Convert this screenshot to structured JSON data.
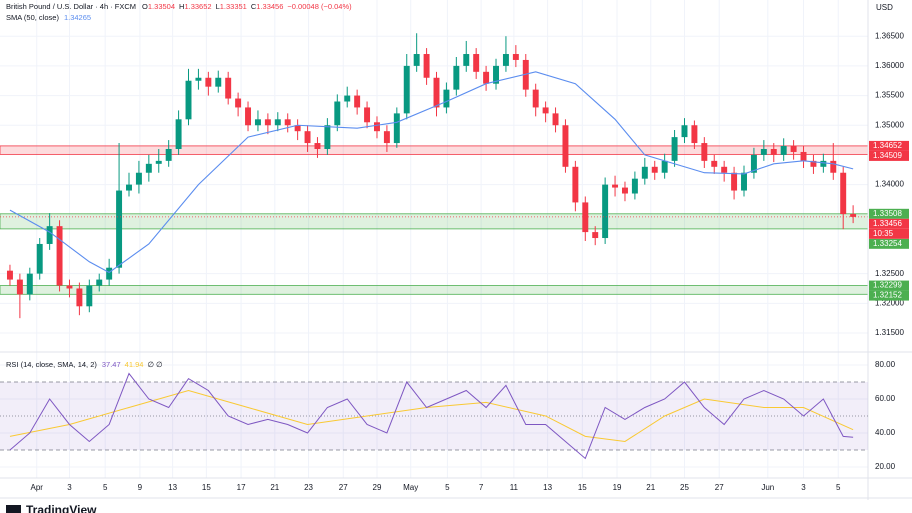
{
  "chart_data": {
    "type": "candlestick",
    "title": "British Pound / U.S. Dollar · 4h · FXCM",
    "ohlc_labels": [
      "O",
      "H",
      "L",
      "C"
    ],
    "change": "−0.00048 (−0.04%)",
    "currency": "USD",
    "countdown": "10:35",
    "brand": "TradingView",
    "up_color": "#089981",
    "down_color": "#f23645",
    "x": [
      0,
      1,
      2,
      3,
      4,
      5,
      6,
      7,
      8,
      9,
      10,
      11,
      12,
      13,
      14,
      15,
      16,
      17,
      18,
      19,
      20,
      21,
      22,
      23,
      24,
      25,
      26,
      27,
      28,
      29,
      30,
      31,
      32,
      33,
      34,
      35,
      36,
      37,
      38,
      39,
      40,
      41,
      42,
      43,
      44,
      45,
      46,
      47,
      48,
      49,
      50,
      51,
      52,
      53,
      54,
      55,
      56,
      57,
      58,
      59,
      60,
      61,
      62,
      63,
      64,
      65,
      66,
      67,
      68,
      69,
      70,
      71,
      72,
      73,
      74,
      75,
      76,
      77,
      78,
      79,
      80,
      81,
      82,
      83,
      84,
      85
    ],
    "open": [
      1.3255,
      1.324,
      1.3215,
      1.325,
      1.33,
      1.333,
      1.323,
      1.3225,
      1.3195,
      1.323,
      1.324,
      1.326,
      1.339,
      1.34,
      1.342,
      1.3435,
      1.344,
      1.346,
      1.351,
      1.3575,
      1.358,
      1.3565,
      1.358,
      1.3545,
      1.353,
      1.35,
      1.351,
      1.35,
      1.351,
      1.35,
      1.349,
      1.347,
      1.346,
      1.35,
      1.354,
      1.355,
      1.353,
      1.3505,
      1.349,
      1.347,
      1.352,
      1.36,
      1.362,
      1.358,
      1.353,
      1.356,
      1.36,
      1.362,
      1.359,
      1.357,
      1.36,
      1.362,
      1.361,
      1.356,
      1.353,
      1.352,
      1.35,
      1.343,
      1.337,
      1.332,
      1.331,
      1.34,
      1.3395,
      1.3385,
      1.341,
      1.343,
      1.342,
      1.344,
      1.348,
      1.35,
      1.347,
      1.344,
      1.343,
      1.342,
      1.339,
      1.342,
      1.345,
      1.346,
      1.345,
      1.3465,
      1.3455,
      1.344,
      1.343,
      1.344,
      1.342,
      1.33504
    ],
    "high": [
      1.3265,
      1.325,
      1.326,
      1.331,
      1.3352,
      1.334,
      1.324,
      1.3235,
      1.324,
      1.325,
      1.3275,
      1.347,
      1.342,
      1.344,
      1.345,
      1.346,
      1.3475,
      1.3525,
      1.3595,
      1.3595,
      1.359,
      1.3592,
      1.359,
      1.3555,
      1.354,
      1.3525,
      1.352,
      1.3522,
      1.352,
      1.351,
      1.35,
      1.348,
      1.3512,
      1.3552,
      1.3565,
      1.356,
      1.354,
      1.3515,
      1.35,
      1.353,
      1.362,
      1.3655,
      1.363,
      1.359,
      1.3572,
      1.3615,
      1.3642,
      1.363,
      1.36,
      1.3612,
      1.365,
      1.3635,
      1.362,
      1.357,
      1.354,
      1.353,
      1.351,
      1.344,
      1.338,
      1.333,
      1.3412,
      1.3415,
      1.3405,
      1.3422,
      1.3445,
      1.344,
      1.3452,
      1.3492,
      1.3512,
      1.3508,
      1.348,
      1.345,
      1.344,
      1.343,
      1.3432,
      1.3462,
      1.3475,
      1.347,
      1.3478,
      1.3475,
      1.3465,
      1.345,
      1.3452,
      1.347,
      1.343,
      1.33652
    ],
    "low": [
      1.323,
      1.3175,
      1.3205,
      1.324,
      1.329,
      1.322,
      1.321,
      1.318,
      1.3185,
      1.322,
      1.323,
      1.325,
      1.338,
      1.3385,
      1.3405,
      1.342,
      1.343,
      1.345,
      1.35,
      1.356,
      1.355,
      1.3555,
      1.3535,
      1.3515,
      1.349,
      1.349,
      1.3485,
      1.349,
      1.3488,
      1.3475,
      1.3455,
      1.3445,
      1.345,
      1.349,
      1.353,
      1.3518,
      1.3495,
      1.3478,
      1.3455,
      1.3462,
      1.351,
      1.359,
      1.3568,
      1.3515,
      1.352,
      1.355,
      1.359,
      1.3578,
      1.3558,
      1.356,
      1.359,
      1.3598,
      1.3548,
      1.3515,
      1.3505,
      1.3488,
      1.342,
      1.3355,
      1.3305,
      1.3298,
      1.33,
      1.338,
      1.3372,
      1.3375,
      1.34,
      1.3408,
      1.341,
      1.343,
      1.347,
      1.346,
      1.3428,
      1.3418,
      1.3405,
      1.3375,
      1.338,
      1.341,
      1.344,
      1.3438,
      1.344,
      1.3442,
      1.3428,
      1.3418,
      1.342,
      1.3408,
      1.3325,
      1.33351
    ],
    "close": [
      1.324,
      1.3215,
      1.325,
      1.33,
      1.333,
      1.323,
      1.3225,
      1.3195,
      1.323,
      1.324,
      1.326,
      1.339,
      1.34,
      1.342,
      1.3435,
      1.344,
      1.346,
      1.351,
      1.3575,
      1.358,
      1.3565,
      1.358,
      1.3545,
      1.353,
      1.35,
      1.351,
      1.35,
      1.351,
      1.35,
      1.349,
      1.347,
      1.346,
      1.35,
      1.354,
      1.355,
      1.353,
      1.3505,
      1.349,
      1.347,
      1.352,
      1.36,
      1.362,
      1.358,
      1.353,
      1.356,
      1.36,
      1.362,
      1.359,
      1.357,
      1.36,
      1.362,
      1.361,
      1.356,
      1.353,
      1.352,
      1.35,
      1.343,
      1.337,
      1.332,
      1.331,
      1.34,
      1.3395,
      1.3385,
      1.341,
      1.343,
      1.342,
      1.344,
      1.348,
      1.35,
      1.347,
      1.344,
      1.343,
      1.342,
      1.339,
      1.342,
      1.345,
      1.346,
      1.345,
      1.3465,
      1.3455,
      1.344,
      1.343,
      1.344,
      1.342,
      1.33504,
      1.33456
    ],
    "xlim": [
      -0.5,
      86.5
    ],
    "xticks": [
      {
        "value": 2.7,
        "label": "Apr"
      },
      {
        "value": 6.0,
        "label": "3"
      },
      {
        "value": 9.6,
        "label": "5"
      },
      {
        "value": 13.1,
        "label": "9"
      },
      {
        "value": 16.4,
        "label": "13"
      },
      {
        "value": 19.8,
        "label": "15"
      },
      {
        "value": 23.3,
        "label": "17"
      },
      {
        "value": 26.7,
        "label": "21"
      },
      {
        "value": 30.1,
        "label": "23"
      },
      {
        "value": 33.6,
        "label": "27"
      },
      {
        "value": 37.0,
        "label": "29"
      },
      {
        "value": 40.4,
        "label": "May"
      },
      {
        "value": 44.1,
        "label": "5"
      },
      {
        "value": 47.5,
        "label": "7"
      },
      {
        "value": 50.8,
        "label": "11"
      },
      {
        "value": 54.2,
        "label": "13"
      },
      {
        "value": 57.7,
        "label": "15"
      },
      {
        "value": 61.2,
        "label": "19"
      },
      {
        "value": 64.6,
        "label": "21"
      },
      {
        "value": 68.0,
        "label": "25"
      },
      {
        "value": 71.5,
        "label": "27"
      },
      {
        "value": 76.4,
        "label": "Jun"
      },
      {
        "value": 80.0,
        "label": "3"
      },
      {
        "value": 83.5,
        "label": "5"
      }
    ],
    "ylim": [
      1.3118,
      1.3711
    ],
    "yticks": [
      {
        "value": 1.315,
        "label": "1.31500"
      },
      {
        "value": 1.32,
        "label": "1.32000"
      },
      {
        "value": 1.325,
        "label": "1.32500"
      },
      {
        "value": 1.34,
        "label": "1.34000"
      },
      {
        "value": 1.35,
        "label": "1.35000"
      },
      {
        "value": 1.355,
        "label": "1.35500"
      },
      {
        "value": 1.36,
        "label": "1.36000"
      },
      {
        "value": 1.365,
        "label": "1.36500"
      }
    ],
    "grid": true,
    "overlays": [
      {
        "name": "SMA (50, close)",
        "color": "#5b8def",
        "x": [
          0,
          4,
          8,
          10,
          14,
          19,
          24,
          29,
          35,
          39,
          44,
          48,
          53,
          57,
          61,
          64,
          70,
          74,
          77,
          80,
          83,
          85
        ],
        "values": [
          1.3357,
          1.332,
          1.327,
          1.3252,
          1.33,
          1.34,
          1.348,
          1.35,
          1.3495,
          1.3505,
          1.354,
          1.357,
          1.359,
          1.357,
          1.351,
          1.345,
          1.342,
          1.3418,
          1.3435,
          1.344,
          1.3435,
          1.34265
        ]
      }
    ],
    "zones": [
      {
        "top": 1.34652,
        "bottom": 1.34509,
        "color": "#f23645"
      },
      {
        "top": 1.33508,
        "bottom": 1.33254,
        "color": "#4caf50"
      },
      {
        "top": 1.32299,
        "bottom": 1.32152,
        "color": "#4caf50"
      }
    ],
    "rsi": {
      "name": "RSI (14, close, SMA, 14, 2)",
      "extra": "∅ ∅",
      "color": "#7e57c2",
      "x": [
        0,
        2,
        4,
        6,
        8,
        10,
        12,
        14,
        16,
        18,
        20,
        22,
        24,
        26,
        28,
        30,
        32,
        34,
        36,
        38,
        40,
        42,
        44,
        46,
        48,
        50,
        52,
        54,
        56,
        58,
        60,
        62,
        64,
        66,
        68,
        70,
        72,
        74,
        76,
        78,
        80,
        82,
        84,
        85
      ],
      "values": [
        30,
        40,
        60,
        45,
        35,
        45,
        75,
        60,
        55,
        72,
        65,
        50,
        45,
        48,
        45,
        40,
        55,
        60,
        45,
        40,
        70,
        55,
        60,
        65,
        55,
        68,
        45,
        45,
        35,
        25,
        55,
        48,
        55,
        60,
        70,
        55,
        45,
        60,
        65,
        60,
        50,
        60,
        38,
        37.47
      ],
      "sma": {
        "color": "#f9c933",
        "x": [
          0,
          6,
          12,
          18,
          24,
          30,
          36,
          42,
          48,
          54,
          58,
          62,
          66,
          70,
          76,
          80,
          85
        ],
        "values": [
          38,
          45,
          55,
          65,
          55,
          45,
          50,
          55,
          58,
          50,
          38,
          35,
          50,
          60,
          55,
          55,
          41.94
        ]
      },
      "ylim": [
        13.5,
        85.9
      ],
      "yticks": [
        {
          "value": 80,
          "label": "80.00"
        },
        {
          "value": 60,
          "label": "60.00"
        },
        {
          "value": 40,
          "label": "40.00"
        },
        {
          "value": 20,
          "label": "20.00"
        }
      ],
      "levels": [
        70,
        50,
        30
      ]
    }
  }
}
